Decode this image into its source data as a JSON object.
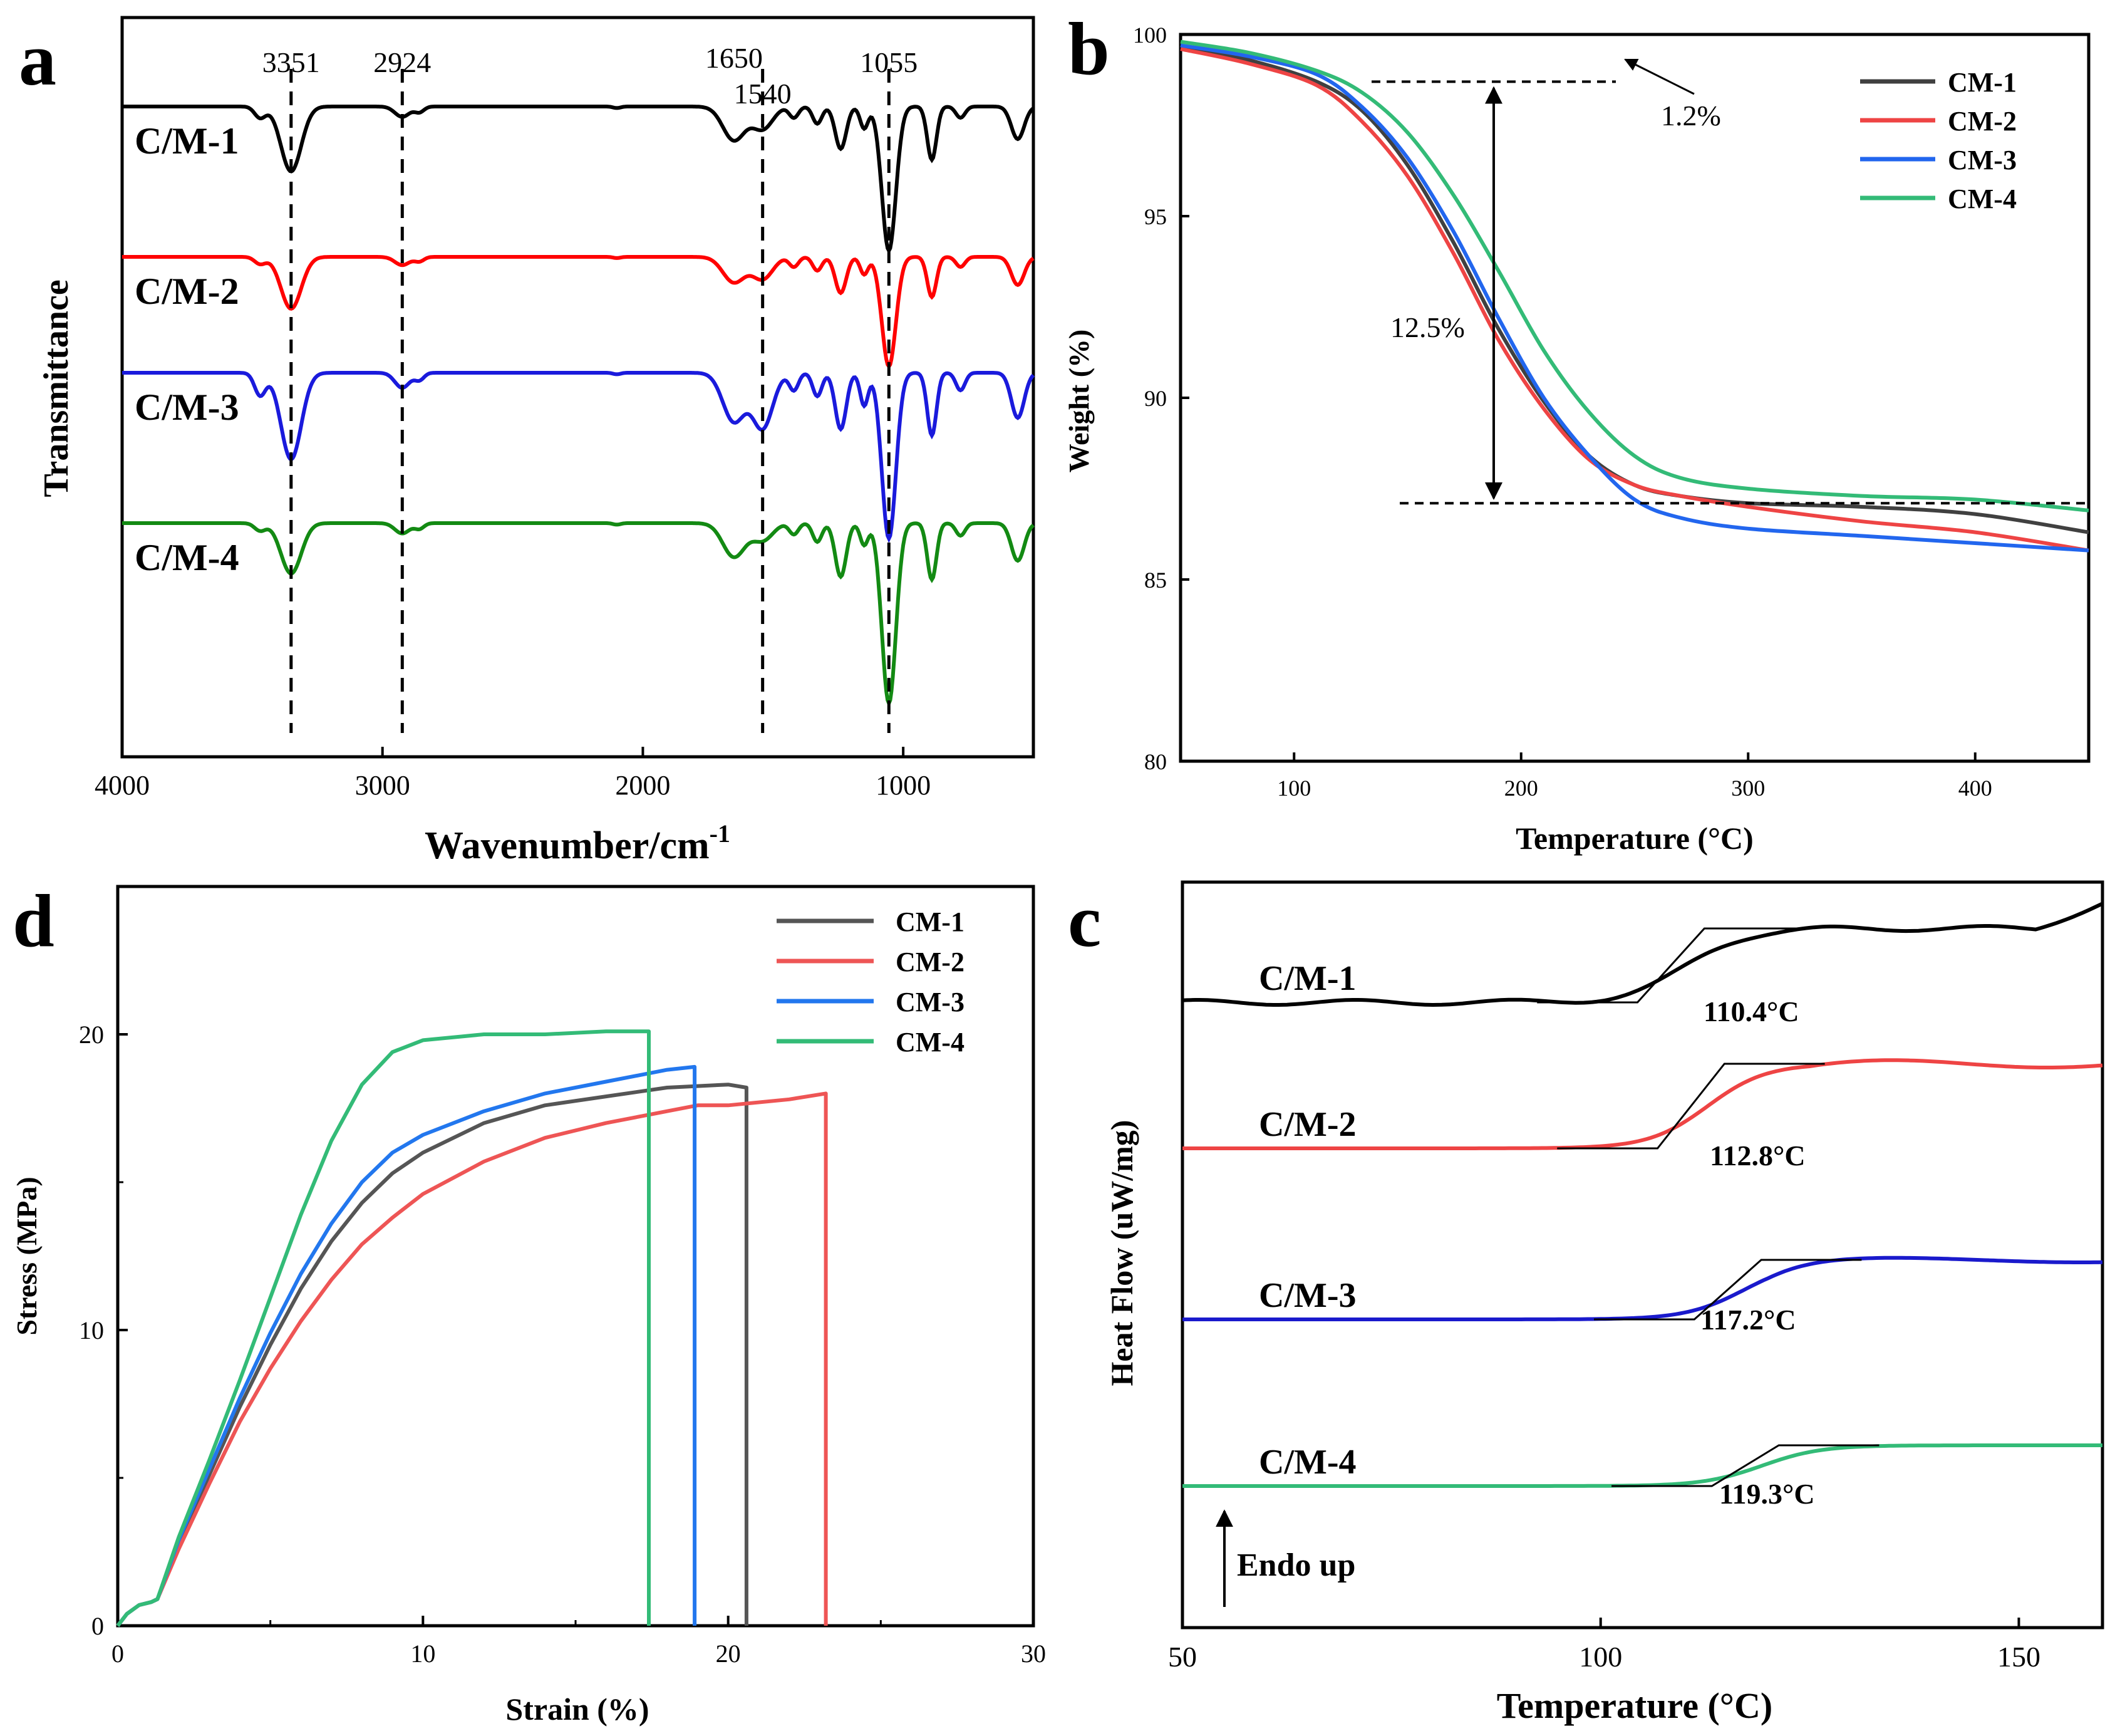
{
  "chart_data": [
    {
      "panel": "a",
      "type": "line",
      "xlabel": "Wavenumber/cm",
      "xlabel_superscript": "-1",
      "ylabel": "Transmittance",
      "xlim": [
        4000,
        500
      ],
      "xticks": [
        "4000",
        "3000",
        "2000",
        "1000"
      ],
      "xtick_values": [
        4000,
        3000,
        2000,
        1000
      ],
      "peak_marks": [
        {
          "value": 3351,
          "label": "3351"
        },
        {
          "value": 2924,
          "label": "2924"
        },
        {
          "value": 1540,
          "label": "1540"
        },
        {
          "value": 1055,
          "label": "1055"
        }
      ],
      "peak_labels_extra": [
        {
          "value": 1650,
          "label": "1650"
        }
      ],
      "series": [
        {
          "name": "C/M-1",
          "color": "#000000",
          "offset": 0
        },
        {
          "name": "C/M-2",
          "color": "#ff0000",
          "offset": 1
        },
        {
          "name": "C/M-3",
          "color": "#1a1adc",
          "offset": 2
        },
        {
          "name": "C/M-4",
          "color": "#138a13",
          "offset": 3
        }
      ]
    },
    {
      "panel": "b",
      "type": "line",
      "xlabel": "Temperature (°C)",
      "ylabel": "Weight (%)",
      "xlim": [
        50,
        450
      ],
      "ylim": [
        80,
        100
      ],
      "xticks": [
        "100",
        "200",
        "300",
        "400"
      ],
      "xtick_values": [
        100,
        200,
        300,
        400
      ],
      "yticks": [
        "80",
        "85",
        "90",
        "95",
        "100"
      ],
      "ytick_values": [
        80,
        85,
        90,
        95,
        100
      ],
      "annotations": [
        "1.2%",
        "12.5%"
      ],
      "ref_levels": [
        98.7,
        87.1
      ],
      "series": [
        {
          "name": "CM-1",
          "color": "#404040",
          "x": [
            50,
            80,
            110,
            130,
            150,
            170,
            190,
            210,
            230,
            250,
            270,
            300,
            350,
            400,
            450
          ],
          "y": [
            99.7,
            99.3,
            98.7,
            97.9,
            96.4,
            94.3,
            91.9,
            89.9,
            88.4,
            87.6,
            87.3,
            87.1,
            87.0,
            86.8,
            86.3
          ]
        },
        {
          "name": "CM-2",
          "color": "#ee4444",
          "x": [
            50,
            80,
            110,
            130,
            150,
            170,
            190,
            210,
            230,
            250,
            270,
            300,
            350,
            400,
            450
          ],
          "y": [
            99.6,
            99.2,
            98.6,
            97.6,
            96.1,
            94.0,
            91.6,
            89.7,
            88.3,
            87.6,
            87.3,
            87.0,
            86.6,
            86.3,
            85.8
          ]
        },
        {
          "name": "CM-3",
          "color": "#2266ee",
          "x": [
            50,
            80,
            110,
            130,
            150,
            170,
            190,
            210,
            230,
            250,
            270,
            300,
            350,
            400,
            450
          ],
          "y": [
            99.7,
            99.4,
            98.9,
            98.0,
            96.6,
            94.6,
            92.2,
            90.0,
            88.4,
            87.2,
            86.7,
            86.4,
            86.2,
            86.0,
            85.8
          ]
        },
        {
          "name": "CM-4",
          "color": "#33bb77",
          "x": [
            50,
            80,
            110,
            130,
            150,
            170,
            190,
            210,
            230,
            250,
            270,
            300,
            350,
            400,
            450
          ],
          "y": [
            99.8,
            99.5,
            99.0,
            98.4,
            97.3,
            95.6,
            93.5,
            91.3,
            89.6,
            88.4,
            87.8,
            87.5,
            87.3,
            87.2,
            86.9
          ]
        }
      ]
    },
    {
      "panel": "c",
      "type": "line",
      "xlabel": "Temperature (°C)",
      "ylabel": "Heat Flow (uW/mg)",
      "xlim": [
        50,
        160
      ],
      "xticks": [
        "50",
        "100",
        "150"
      ],
      "xtick_values": [
        50,
        100,
        150
      ],
      "endo_label": "Endo up",
      "series": [
        {
          "name": "C/M-1",
          "color": "#000000",
          "tg_label": "110.4°C",
          "tg": 110.4
        },
        {
          "name": "C/M-2",
          "color": "#ee4444",
          "tg_label": "112.8°C",
          "tg": 112.8
        },
        {
          "name": "C/M-3",
          "color": "#1a1acc",
          "tg_label": "117.2°C",
          "tg": 117.2
        },
        {
          "name": "C/M-4",
          "color": "#33bb77",
          "tg_label": "119.3°C",
          "tg": 119.3
        }
      ]
    },
    {
      "panel": "d",
      "type": "line",
      "xlabel": "Strain (%)",
      "ylabel": "Stress (MPa)",
      "xlim": [
        0,
        30
      ],
      "ylim": [
        0,
        25
      ],
      "xticks": [
        "0",
        "10",
        "20",
        "30"
      ],
      "xtick_values": [
        0,
        10,
        20,
        30
      ],
      "yticks": [
        "0",
        "10",
        "20"
      ],
      "ytick_values": [
        0,
        10,
        20
      ],
      "series": [
        {
          "name": "CM-1",
          "color": "#555555",
          "x": [
            0,
            0.3,
            0.7,
            1.1,
            1.3,
            2,
            3,
            4,
            5,
            6,
            7,
            8,
            9,
            10,
            12,
            14,
            16,
            18,
            20,
            20.6,
            20.6
          ],
          "y": [
            0,
            0.4,
            0.7,
            0.8,
            0.9,
            2.8,
            5.1,
            7.4,
            9.5,
            11.4,
            13.0,
            14.3,
            15.3,
            16.0,
            17.0,
            17.6,
            17.9,
            18.2,
            18.3,
            18.2,
            0
          ]
        },
        {
          "name": "CM-2",
          "color": "#ee5555",
          "x": [
            0,
            0.3,
            0.7,
            1.1,
            1.3,
            2,
            3,
            4,
            5,
            6,
            7,
            8,
            9,
            10,
            12,
            14,
            16,
            18,
            19,
            20,
            22,
            23.2,
            23.2
          ],
          "y": [
            0,
            0.4,
            0.7,
            0.8,
            0.9,
            2.6,
            4.8,
            6.9,
            8.7,
            10.3,
            11.7,
            12.9,
            13.8,
            14.6,
            15.7,
            16.5,
            17.0,
            17.4,
            17.6,
            17.6,
            17.8,
            18.0,
            0
          ]
        },
        {
          "name": "CM-3",
          "color": "#2277ee",
          "x": [
            0,
            0.3,
            0.7,
            1.1,
            1.3,
            2,
            3,
            4,
            5,
            6,
            7,
            8,
            9,
            10,
            12,
            14,
            16,
            18,
            18.9,
            18.9
          ],
          "y": [
            0,
            0.4,
            0.7,
            0.8,
            0.9,
            2.9,
            5.3,
            7.7,
            9.9,
            11.9,
            13.6,
            15.0,
            16.0,
            16.6,
            17.4,
            18.0,
            18.4,
            18.8,
            18.9,
            0
          ]
        },
        {
          "name": "CM-4",
          "color": "#33bb77",
          "x": [
            0,
            0.3,
            0.7,
            1.1,
            1.3,
            2,
            3,
            4,
            5,
            6,
            7,
            8,
            9,
            10,
            12,
            14,
            16,
            17.4,
            17.4
          ],
          "y": [
            0,
            0.4,
            0.7,
            0.8,
            0.9,
            3.0,
            5.6,
            8.3,
            11.1,
            13.9,
            16.4,
            18.3,
            19.4,
            19.8,
            20.0,
            20.0,
            20.1,
            20.1,
            0
          ]
        }
      ]
    }
  ],
  "panel_labels": {
    "a": "a",
    "b": "b",
    "c": "c",
    "d": "d"
  }
}
